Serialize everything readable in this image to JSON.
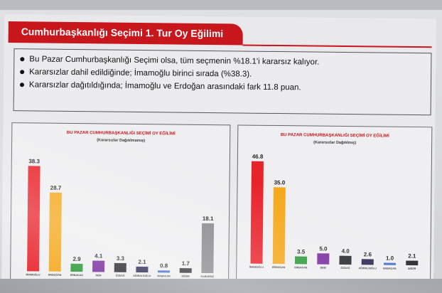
{
  "slide": {
    "title": "Cumhurbaşkanlığı Seçimi 1. Tur Oy Eğilimi",
    "bullets": [
      "Bu Pazar Cumhurbaşkanlığı Seçimi olsa, tüm seçmenin %18.1'i kararsız kalıyor.",
      "Kararsızlar dahil edildiğinde; İmamoğlu birinci sırada (%38.3).",
      "Kararsızlar dağıtıldığında; İmamoğlu ve Erdoğan arasındaki fark 11.8 puan."
    ]
  },
  "chart_data": [
    {
      "type": "bar",
      "title": "BU PAZAR CUMHURBAŞKANLIĞI SEÇİMİ OY EĞİLİMİ",
      "subtitle": "(Kararsızlar Dağıtılmamış)",
      "categories": [
        "İMAMOĞLU",
        "ERDOĞAN",
        "ERBAKAN",
        "DEM",
        "ÖZDAĞ",
        "AĞIRALİOĞLU",
        "BABACAN",
        "DİĞER",
        "KARARSIZ"
      ],
      "values": [
        38.3,
        28.7,
        2.9,
        4.1,
        3.3,
        2.1,
        0.8,
        1.7,
        18.1
      ],
      "value_labels": [
        "38.3",
        "28.7",
        "2.9",
        "4.1",
        "3.3",
        "2.1",
        "0.8",
        "1.7",
        "18.1"
      ],
      "colors": [
        "#e8242b",
        "#f5a81c",
        "#2e9a3a",
        "#7b2fa0",
        "#2b2b33",
        "#2f2a55",
        "#4a6fd0",
        "#2b2b33",
        "#8a8a8e"
      ],
      "ylim": [
        0,
        45
      ],
      "grid": false
    },
    {
      "type": "bar",
      "title": "BU PAZAR CUMHURBAŞKANLIĞI SEÇİMİ OY EĞİLİMİ",
      "subtitle": "(Kararsızlar Dağıtılmış)",
      "categories": [
        "İMAMOĞLU",
        "ERDOĞAN",
        "ERBAKAN",
        "DEM",
        "ÖZDAĞ",
        "AĞIRALİOĞLU",
        "BABACAN",
        "DİĞER"
      ],
      "values": [
        46.8,
        35.0,
        3.5,
        5.0,
        4.0,
        2.6,
        1.0,
        2.1
      ],
      "value_labels": [
        "46.8",
        "35.0",
        "3.5",
        "5.0",
        "4.0",
        "2.6",
        "1.0",
        "2.1"
      ],
      "colors": [
        "#e8242b",
        "#f5a81c",
        "#2e9a3a",
        "#7b2fa0",
        "#2b2b33",
        "#2f2a55",
        "#4a6fd0",
        "#2b2b33"
      ],
      "ylim": [
        0,
        52
      ],
      "grid": false
    }
  ]
}
